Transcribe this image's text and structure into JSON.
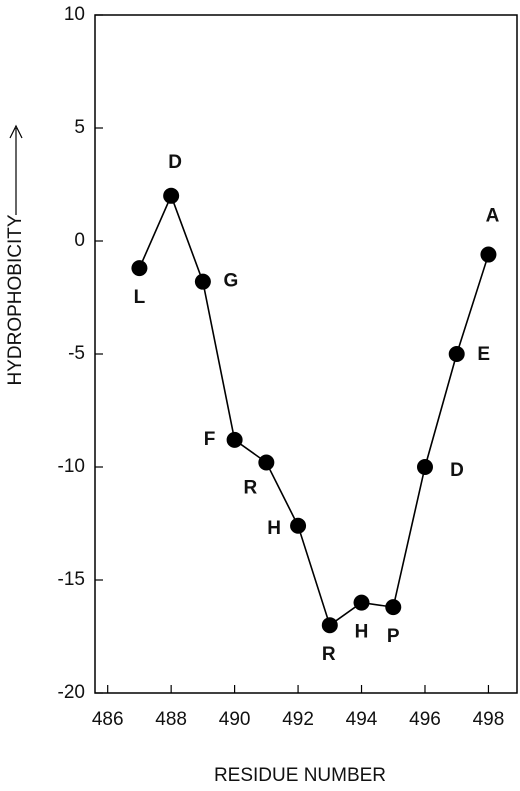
{
  "chart_data": {
    "type": "line",
    "x_label": "RESIDUE NUMBER",
    "y_label": "HYDROPHOBICITY",
    "x": [
      487,
      488,
      489,
      490,
      491,
      492,
      493,
      494,
      495,
      496,
      497,
      498
    ],
    "series": [
      {
        "color": "#000000",
        "values": [
          -1.2,
          2.0,
          -1.8,
          -8.8,
          -9.8,
          -12.6,
          -17.0,
          -16.0,
          -16.2,
          -10.0,
          -5.0,
          -0.6
        ],
        "point_labels": [
          "L",
          "D",
          "G",
          "F",
          "R",
          "H",
          "R",
          "H",
          "P",
          "D",
          "E",
          "A"
        ]
      }
    ],
    "xlim": [
      485.6,
      498.9
    ],
    "ylim": [
      -20,
      10
    ],
    "xticks": [
      486,
      488,
      490,
      492,
      494,
      496,
      498
    ],
    "yticks": [
      -20,
      -15,
      -10,
      -5,
      0,
      5,
      10
    ]
  }
}
